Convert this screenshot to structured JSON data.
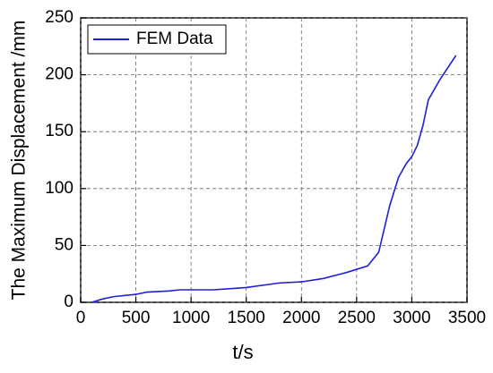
{
  "chart_data": {
    "type": "line",
    "x_label": "t/s",
    "y_label": "The Maximum Displacement /mm",
    "x": [
      100,
      200,
      300,
      500,
      600,
      800,
      900,
      1000,
      1200,
      1500,
      1800,
      2000,
      2200,
      2400,
      2600,
      2700,
      2800,
      2880,
      2950,
      3000,
      3050,
      3100,
      3150,
      3250,
      3400
    ],
    "series": [
      {
        "name": "FEM Data",
        "color": "#1f1fe0",
        "values": [
          0,
          3,
          5,
          7,
          9,
          10,
          11,
          11,
          11,
          13,
          17,
          18,
          21,
          26,
          32,
          44,
          85,
          110,
          122,
          128,
          138,
          155,
          178,
          195,
          217
        ]
      }
    ],
    "xlim": [
      0,
      3500
    ],
    "xticks": [
      0,
      500,
      1000,
      1500,
      2000,
      2500,
      3000,
      3500
    ],
    "ylim": [
      0,
      250
    ],
    "yticks": [
      0,
      50,
      100,
      150,
      200,
      250
    ],
    "grid": true,
    "legend": "upper-left"
  }
}
